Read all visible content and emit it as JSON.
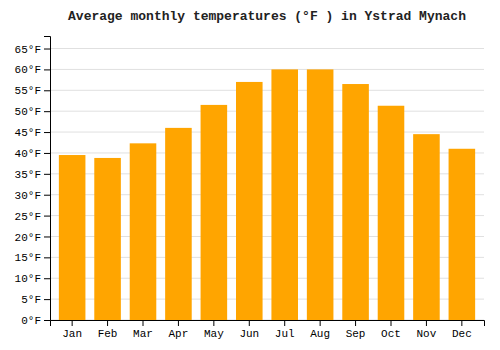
{
  "chart_data": {
    "type": "bar",
    "title": "Average monthly temperatures (°F ) in Ystrad Mynach",
    "categories": [
      "Jan",
      "Feb",
      "Mar",
      "Apr",
      "May",
      "Jun",
      "Jul",
      "Aug",
      "Sep",
      "Oct",
      "Nov",
      "Dec"
    ],
    "values": [
      39.5,
      38.8,
      42.3,
      46.0,
      51.5,
      57.0,
      60.0,
      60.0,
      56.5,
      51.3,
      44.5,
      41.0
    ],
    "color": "#FFA500",
    "ylim": [
      0,
      68
    ],
    "yticks": [
      {
        "value": 0,
        "label": "0°F"
      },
      {
        "value": 5,
        "label": "5°F"
      },
      {
        "value": 10,
        "label": "10°F"
      },
      {
        "value": 15,
        "label": "15°F"
      },
      {
        "value": 20,
        "label": "20°F"
      },
      {
        "value": 25,
        "label": "25°F"
      },
      {
        "value": 30,
        "label": "30°F"
      },
      {
        "value": 35,
        "label": "35°F"
      },
      {
        "value": 40,
        "label": "40°F"
      },
      {
        "value": 45,
        "label": "45°F"
      },
      {
        "value": 50,
        "label": "50°F"
      },
      {
        "value": 55,
        "label": "55°F"
      },
      {
        "value": 60,
        "label": "60°F"
      },
      {
        "value": 65,
        "label": "65°F"
      }
    ],
    "grid": true
  }
}
